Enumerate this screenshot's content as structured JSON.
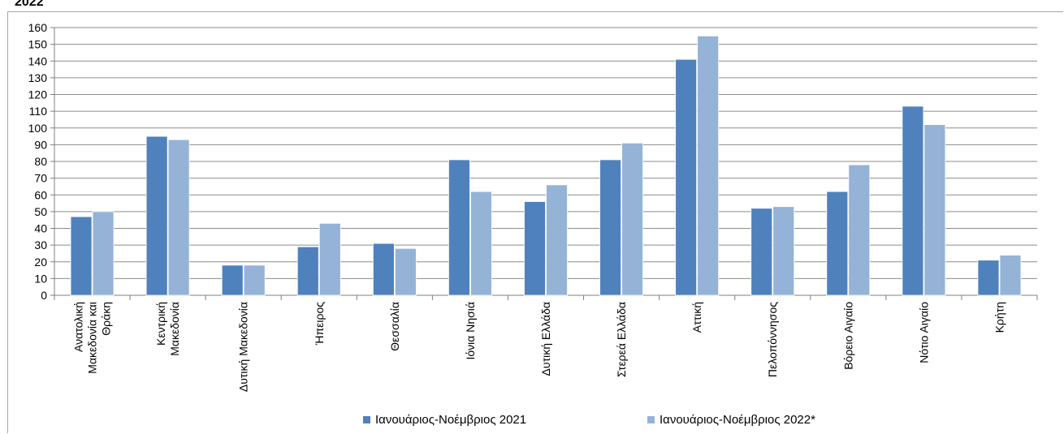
{
  "top_fragment": "2022",
  "chart_data": {
    "type": "bar",
    "title": "",
    "xlabel": "",
    "ylabel": "",
    "ylim": [
      0,
      160
    ],
    "ytick_step": 10,
    "grid": true,
    "legend_position": "bottom",
    "categories": [
      [
        "Ανατολική",
        "Μακεδονία και",
        "Θράκη"
      ],
      [
        "Κεντρική",
        "Μακεδονία"
      ],
      [
        "Δυτική Μακεδονία"
      ],
      [
        "Ήπειρος"
      ],
      [
        "Θεσσαλία"
      ],
      [
        "Ιόνια Νησιά"
      ],
      [
        "Δυτική Ελλάδα"
      ],
      [
        "Στερεά Ελλάδα"
      ],
      [
        "Αττική"
      ],
      [
        "Πελοπόννησος"
      ],
      [
        "Βόρειο Αιγαίο"
      ],
      [
        "Νότιο Αιγαίο"
      ],
      [
        "Κρήτη"
      ]
    ],
    "series": [
      {
        "name": "Ιανουάριος-Νοέμβριος 2021",
        "color": "#4f81bd",
        "values": [
          47,
          95,
          18,
          29,
          31,
          81,
          56,
          81,
          141,
          52,
          62,
          113,
          21
        ]
      },
      {
        "name": "Ιανουάριος-Νοέμβριος 2022*",
        "color": "#95b3d7",
        "values": [
          50,
          93,
          18,
          43,
          28,
          62,
          66,
          91,
          155,
          53,
          78,
          102,
          24
        ]
      }
    ]
  }
}
